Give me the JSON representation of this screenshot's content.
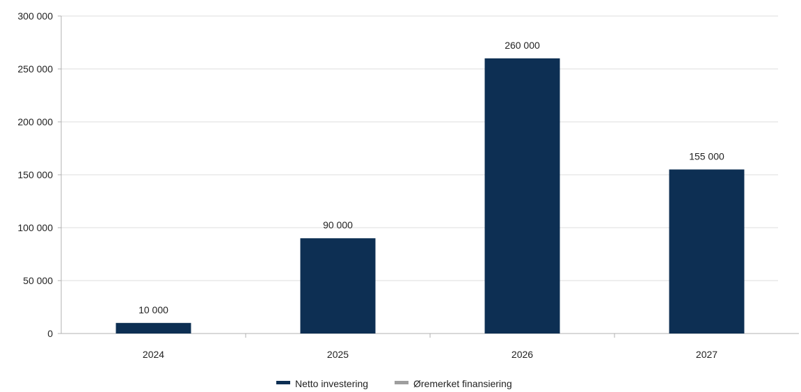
{
  "chart_data": {
    "type": "bar",
    "categories": [
      "2024",
      "2025",
      "2026",
      "2027"
    ],
    "series": [
      {
        "name": "Netto investering",
        "values": [
          10000,
          90000,
          260000,
          155000
        ],
        "color": "#0d2f53"
      },
      {
        "name": "Øremerket finansiering",
        "values": [
          0,
          0,
          0,
          0
        ],
        "color": "#9e9e9e"
      }
    ],
    "data_labels": [
      "10 000",
      "90 000",
      "260 000",
      "155 000"
    ],
    "yticks": [
      0,
      50000,
      100000,
      150000,
      200000,
      250000,
      300000
    ],
    "ytick_labels": [
      "0",
      "50 000",
      "100 000",
      "150 000",
      "200 000",
      "250 000",
      "300 000"
    ],
    "ylim": [
      0,
      300000
    ],
    "grid": true,
    "legend_position": "bottom"
  }
}
